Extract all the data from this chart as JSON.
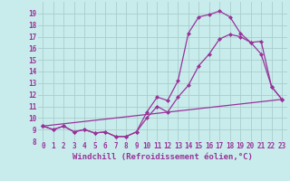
{
  "xlabel": "Windchill (Refroidissement éolien,°C)",
  "background_color": "#c8ecec",
  "grid_color": "#aacccc",
  "line_color": "#993399",
  "ylim": [
    8,
    20
  ],
  "xlim": [
    -0.5,
    23.5
  ],
  "yticks": [
    8,
    9,
    10,
    11,
    12,
    13,
    14,
    15,
    16,
    17,
    18,
    19
  ],
  "xticks": [
    0,
    1,
    2,
    3,
    4,
    5,
    6,
    7,
    8,
    9,
    10,
    11,
    12,
    13,
    14,
    15,
    16,
    17,
    18,
    19,
    20,
    21,
    22,
    23
  ],
  "series1_x": [
    0,
    1,
    2,
    3,
    4,
    5,
    6,
    7,
    8,
    9,
    10,
    11,
    12,
    13,
    14,
    15,
    16,
    17,
    18,
    19,
    20,
    21,
    22,
    23
  ],
  "series1_y": [
    9.3,
    9.0,
    9.3,
    8.8,
    9.0,
    8.7,
    8.8,
    8.4,
    8.4,
    8.8,
    10.5,
    11.8,
    11.5,
    13.2,
    17.3,
    18.7,
    18.9,
    19.2,
    18.7,
    17.3,
    16.5,
    16.6,
    12.7,
    11.6
  ],
  "series2_x": [
    0,
    1,
    2,
    3,
    4,
    5,
    6,
    7,
    8,
    9,
    10,
    11,
    12,
    13,
    14,
    15,
    16,
    17,
    18,
    19,
    20,
    21,
    22,
    23
  ],
  "series2_y": [
    9.3,
    9.0,
    9.3,
    8.8,
    9.0,
    8.7,
    8.8,
    8.4,
    8.4,
    8.8,
    10.0,
    11.0,
    10.5,
    11.8,
    12.8,
    14.5,
    15.5,
    16.8,
    17.2,
    17.0,
    16.5,
    15.5,
    12.7,
    11.6
  ],
  "series3_x": [
    0,
    23
  ],
  "series3_y": [
    9.3,
    11.6
  ],
  "marker_size": 2.5,
  "linewidth": 0.9,
  "tick_fontsize": 5.5,
  "xlabel_fontsize": 6.5
}
